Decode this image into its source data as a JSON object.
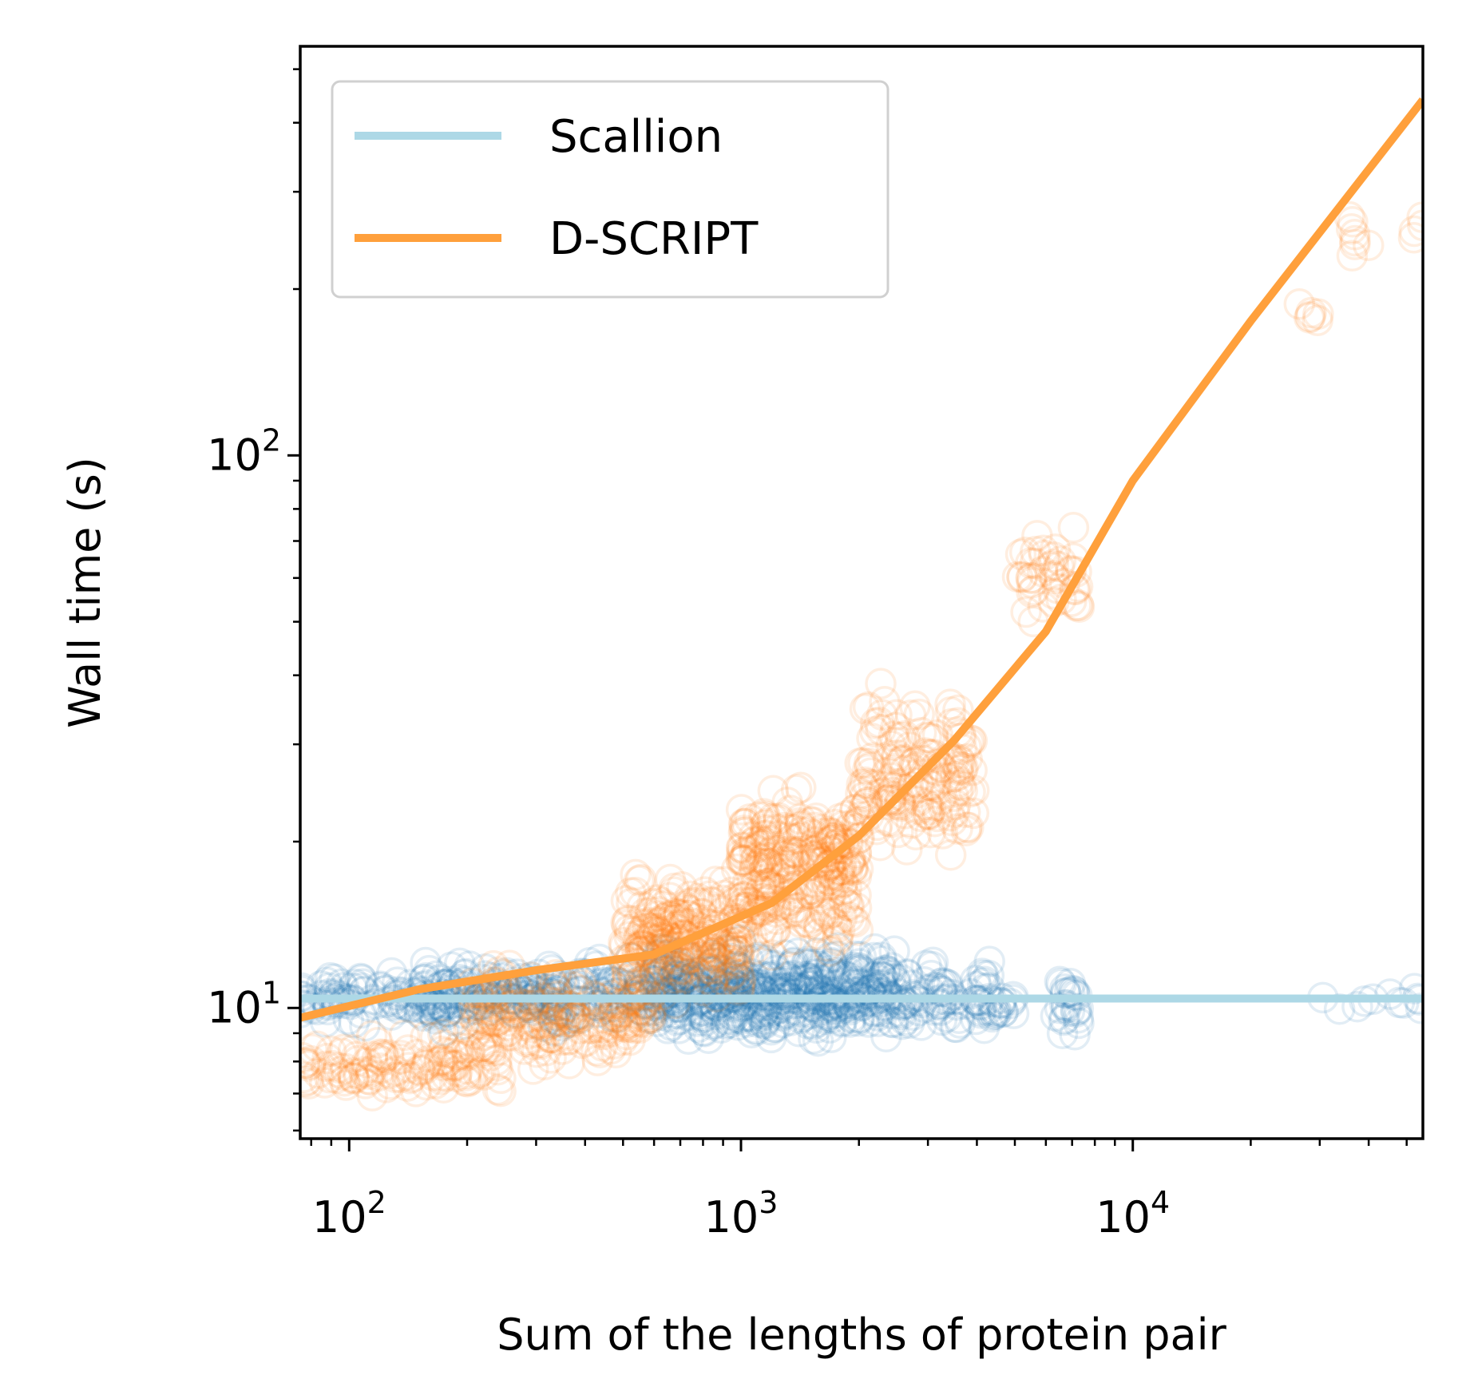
{
  "chart_data": {
    "type": "scatter",
    "xlabel": "Sum of the lengths of protein pair",
    "ylabel": "Wall time (s)",
    "xscale": "log",
    "yscale": "log",
    "xlim": [
      75,
      55000
    ],
    "ylim": [
      5.8,
      550
    ],
    "x_ticks": [
      {
        "base": "10",
        "exp": "2",
        "value": 100
      },
      {
        "base": "10",
        "exp": "3",
        "value": 1000
      },
      {
        "base": "10",
        "exp": "4",
        "value": 10000
      }
    ],
    "y_ticks": [
      {
        "base": "10",
        "exp": "1",
        "value": 10
      },
      {
        "base": "10",
        "exp": "2",
        "value": 100
      }
    ],
    "grid": false,
    "legend": "top-left",
    "series": [
      {
        "name": "Scallion",
        "line_color": "#add8e6",
        "marker_color": "#1f77b4",
        "fit": {
          "x": [
            75,
            55000
          ],
          "y": [
            10.4,
            10.4
          ]
        },
        "clusters": [
          {
            "x_range": [
              75,
              200
            ],
            "y_range": [
              9.2,
              11.8
            ],
            "count": 110
          },
          {
            "x_range": [
              150,
              700
            ],
            "y_range": [
              8.8,
              12.6
            ],
            "count": 260
          },
          {
            "x_range": [
              600,
              2500
            ],
            "y_range": [
              8.3,
              13.6
            ],
            "count": 520
          },
          {
            "x_range": [
              2500,
              4500
            ],
            "y_range": [
              8.5,
              12.8
            ],
            "count": 90
          },
          {
            "x_range": [
              4500,
              5600
            ],
            "y_range": [
              8.8,
              11.6
            ],
            "count": 10
          },
          {
            "x_range": [
              6300,
              7300
            ],
            "y_range": [
              8.6,
              11.9
            ],
            "count": 26
          },
          {
            "x_range": [
              27000,
              50000
            ],
            "y_range": [
              9.6,
              11.4
            ],
            "count": 8
          },
          {
            "x_range": [
              52000,
              55000
            ],
            "y_range": [
              8.9,
              12.0
            ],
            "count": 4
          }
        ]
      },
      {
        "name": "D-SCRIPT",
        "line_color": "#ffa03c",
        "marker_color": "#ff7f0e",
        "fit": {
          "x": [
            75,
            150,
            300,
            600,
            1200,
            2000,
            3500,
            6000,
            10000,
            20000,
            55000
          ],
          "y": [
            9.6,
            10.8,
            11.7,
            12.5,
            15.5,
            20.5,
            30.5,
            48,
            90,
            175,
            440
          ]
        },
        "clusters": [
          {
            "x_range": [
              75,
              250
            ],
            "y_range": [
              6.5,
              9.5
            ],
            "count": 130
          },
          {
            "x_range": [
              200,
              600
            ],
            "y_range": [
              7.5,
              12.6
            ],
            "count": 220
          },
          {
            "x_range": [
              500,
              1000
            ],
            "y_range": [
              9.5,
              18.5
            ],
            "count": 260
          },
          {
            "x_range": [
              1000,
              2000
            ],
            "y_range": [
              11.5,
              27
            ],
            "count": 300
          },
          {
            "x_range": [
              2000,
              4000
            ],
            "y_range": [
              17,
              40
            ],
            "count": 170
          },
          {
            "x_range": [
              5000,
              7300
            ],
            "y_range": [
              45,
              80
            ],
            "count": 45
          },
          {
            "x_range": [
              26000,
              30000
            ],
            "y_range": [
              165,
              195
            ],
            "count": 6
          },
          {
            "x_range": [
              34000,
              40000
            ],
            "y_range": [
              220,
              290
            ],
            "count": 8
          },
          {
            "x_range": [
              52000,
              55000
            ],
            "y_range": [
              245,
              290
            ],
            "count": 4
          }
        ]
      }
    ]
  }
}
